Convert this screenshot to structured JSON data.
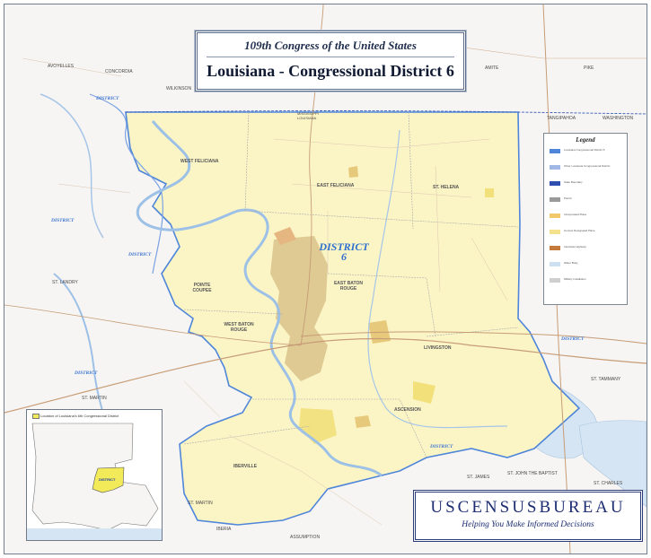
{
  "title": {
    "subtitle": "109th Congress of the United States",
    "main": "Louisiana - Congressional District 6"
  },
  "district_label": {
    "word": "DISTRICT",
    "number": "6"
  },
  "parishes": {
    "east_feliciana": "EAST FELICIANA",
    "west_feliciana": "WEST FELICIANA",
    "st_helena": "ST. HELENA",
    "pointe_coupee": "POINTE COUPEE",
    "east_baton_rouge": "EAST BATON ROUGE",
    "west_baton_rouge": "WEST BATON ROUGE",
    "livingston": "LIVINGSTON",
    "iberville": "IBERVILLE",
    "ascension": "ASCENSION",
    "avoyelles": "AVOYELLES",
    "concordia": "CONCORDIA",
    "wilkinson": "WILKINSON",
    "amite": "AMITE",
    "pike": "PIKE",
    "tangipahoa": "TANGIPAHOA",
    "washington": "WASHINGTON",
    "st_landry": "ST. LANDRY",
    "st_martin_n": "ST. MARTIN",
    "st_martin_s": "ST. MARTIN",
    "st_tammany": "ST. TAMMANY",
    "st_james": "ST. JAMES",
    "st_john": "ST. JOHN THE BAPTIST",
    "st_charles": "ST. CHARLES",
    "iberia": "IBERIA",
    "assumption": "ASSUMPTION",
    "mississippi_louisiana": "MISSISSIPPI\nLOUISIANA"
  },
  "neighbor_districts": {
    "north_west": "DISTRICT",
    "west_upper": "DISTRICT",
    "west_mid": "DISTRICT",
    "west_lower": "DISTRICT",
    "east": "DISTRICT",
    "south": "DISTRICT"
  },
  "legend": {
    "title": "Legend",
    "items": [
      {
        "label": "Louisiana Congressional District 6",
        "color": "#4f86d9"
      },
      {
        "label": "Other Louisiana Congressional District",
        "color": "#9fb8e6"
      },
      {
        "label": "State Boundary",
        "color": "#2f4fb0"
      },
      {
        "label": "Parish",
        "color": "#9a9a9a"
      },
      {
        "label": "Incorporated Place",
        "color": "#f2c96a"
      },
      {
        "label": "Census Designated Place",
        "color": "#f5e08c"
      },
      {
        "label": "Interstate Highway",
        "color": "#c47a3a"
      },
      {
        "label": "Water Body",
        "color": "#cde0f2"
      },
      {
        "label": "Military Installation",
        "color": "#cfcfcf"
      }
    ]
  },
  "inset": {
    "caption": "Location of Louisiana's 6th Congressional District",
    "district_text": "DISTRICT"
  },
  "census": {
    "name": "USCENSUSBUREAU",
    "tagline": "Helping You Make Informed Decisions"
  },
  "colors": {
    "district_fill": "#fbf5c6",
    "district_border": "#4f86d9",
    "water": "#d5e5f3",
    "urban": "#d9c28a",
    "background": "#f6f5f3",
    "road": "#c79c76"
  }
}
